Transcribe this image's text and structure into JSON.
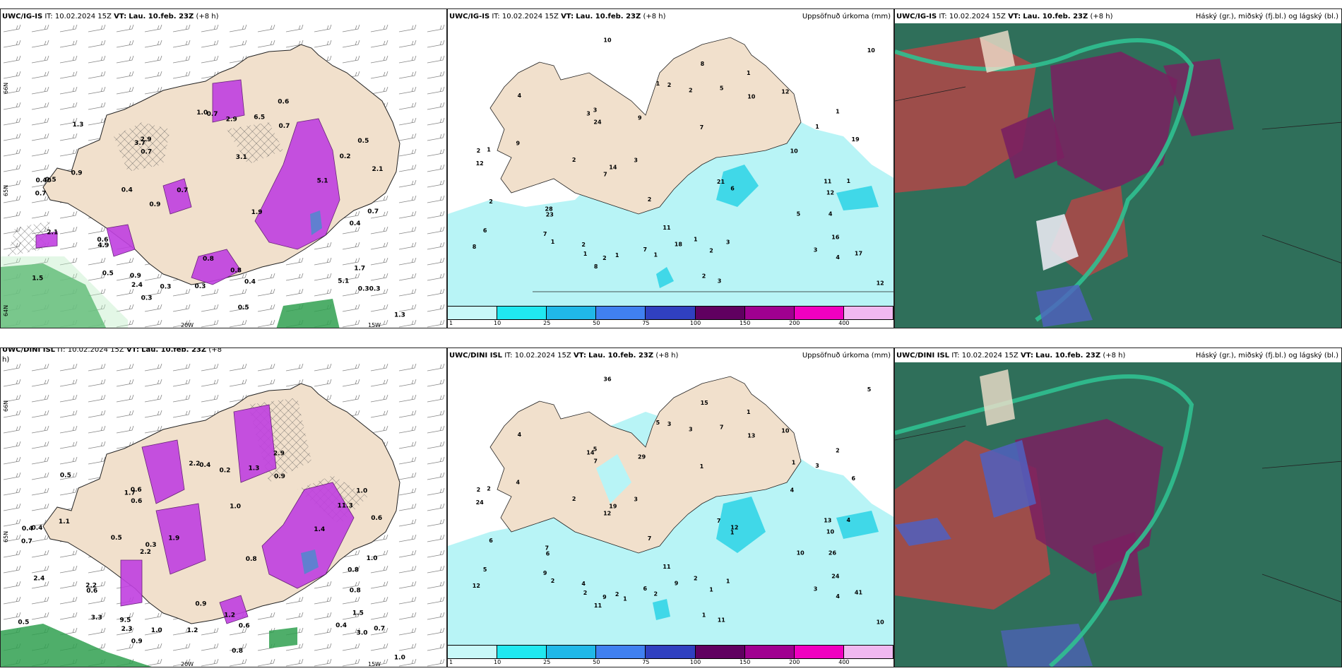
{
  "panels": {
    "p1": {
      "model": "UWC/IG-IS",
      "it_label": "IT:",
      "it": "10.02.2024 15Z",
      "vt_label": "VT:",
      "vt": "Lau. 10.feb. 23Z",
      "lead": "(+8 h)",
      "right": ""
    },
    "p2": {
      "model": "UWC/IG-IS",
      "it_label": "IT:",
      "it": "10.02.2024 15Z",
      "vt_label": "VT:",
      "vt": "Lau. 10.feb. 23Z",
      "lead": "(+8 h)",
      "right": "Uppsöfnuð úrkoma (mm)"
    },
    "p3": {
      "model": "UWC/IG-IS",
      "it_label": "IT:",
      "it": "10.02.2024 15Z",
      "vt_label": "VT:",
      "vt": "Lau. 10.feb. 23Z",
      "lead": "(+8 h)",
      "right": "Háský (gr.), miðský (fj.bl.) og lágský (bl.)"
    },
    "p4": {
      "model": "UWC/DINI ISL",
      "it_label": "IT:",
      "it": "10.02.2024 15Z",
      "vt_label": "VT:",
      "vt": "Lau. 10.feb. 23Z",
      "lead": "(+8",
      "lead2": "h)",
      "right": ""
    },
    "p5": {
      "model": "UWC/DINI ISL",
      "it_label": "IT:",
      "it": "10.02.2024 15Z",
      "vt_label": "VT:",
      "vt": "Lau. 10.feb. 23Z",
      "lead": "(+8 h)",
      "right": "Uppsöfnuð úrkoma (mm)"
    },
    "p6": {
      "model": "UWC/DINI ISL",
      "it_label": "IT:",
      "it": "10.02.2024 15Z",
      "vt_label": "VT:",
      "vt": "Lau. 10.feb. 23Z",
      "lead": "(+8 h)",
      "right": "Háský (gr.), miðský (fj.bl.) og lágský (bl.)"
    }
  },
  "graticule": {
    "lon_20": "20W",
    "lon_15": "15W",
    "lat_66": "66N",
    "lat_65": "65N",
    "lat_64": "64N"
  },
  "colorbar": {
    "labels": [
      "1",
      "10",
      "25",
      "50",
      "75",
      "100",
      "150",
      "200",
      "400"
    ],
    "colors": [
      "#c8f8f8",
      "#20e8f0",
      "#20b8e8",
      "#4080f0",
      "#3040c0",
      "#600060",
      "#a00090",
      "#f000c0",
      "#f0b8f0"
    ]
  },
  "colors": {
    "land": "#f1e0cc",
    "precip_light": "#b8f4f6",
    "precip_mid": "#40d8e8",
    "snow_magenta": "#c040e0",
    "rain_green": "#30a050",
    "cloud_dark": "#2f6f5a",
    "cloud_red": "#b04848",
    "cloud_purple": "#7a2060",
    "cloud_teal": "#30c090"
  },
  "p1_labels": [
    "0.40",
    "0.5",
    "0.5",
    "0.4",
    "0.5",
    "0.6",
    "0.4",
    "0.5",
    "0.3",
    "0.3",
    "0.7",
    "0.8",
    "0.30.3",
    "2.4",
    "2.9",
    "2.9",
    "3.7",
    "2.1",
    "6.5",
    "5.1",
    "1.3",
    "1.0",
    "0.9",
    "0.2",
    "0.7",
    "0.7",
    "3.1",
    "5.1",
    "0.9",
    "1.9",
    "2.1",
    "4.9",
    "0.7",
    "0.6",
    "0.8",
    "1.3",
    "0.4",
    "0.3",
    "1.5",
    "0.9",
    "0.7",
    "0.7",
    "1.7"
  ],
  "p2_labels": [
    "2",
    "1",
    "1",
    "2",
    "1",
    "1",
    "2",
    "2",
    "1",
    "1",
    "2",
    "1",
    "4",
    "1",
    "3",
    "2",
    "3",
    "2",
    "5",
    "3",
    "4",
    "1",
    "2",
    "1",
    "3",
    "1",
    "7",
    "10",
    "9",
    "21",
    "19",
    "23",
    "24",
    "28",
    "11",
    "12",
    "12",
    "8",
    "8",
    "7",
    "12",
    "10",
    "16",
    "17",
    "14",
    "4",
    "9",
    "10",
    "6",
    "12",
    "10",
    "18",
    "2",
    "3",
    "5",
    "2",
    "8",
    "11",
    "7",
    "7",
    "6",
    "3"
  ],
  "p4_labels": [
    "0.4",
    "0.4",
    "1.0",
    "0.5",
    "3.3",
    "2.9",
    "0.6",
    "0.8",
    "1.2",
    "1.0",
    "0.4",
    "1.2",
    "3.0",
    "2.3",
    "0.6",
    "0.2",
    "1.7",
    "2.4",
    "1.3",
    "0.4",
    "0.5",
    "2.2",
    "9.5",
    "11.3",
    "1.9",
    "1.0",
    "1.0",
    "1.4",
    "1.1",
    "0.8",
    "0.6",
    "0.6",
    "0.6",
    "2.2",
    "0.9",
    "1.0",
    "0.8",
    "0.9",
    "0.5",
    "2.2",
    "0.7",
    "0.9",
    "1.5",
    "0.7",
    "0.3",
    "0.8"
  ],
  "p5_labels": [
    "2",
    "2",
    "2",
    "2",
    "2",
    "1",
    "1",
    "1",
    "2",
    "2",
    "3",
    "2",
    "4",
    "2",
    "5",
    "3",
    "14",
    "6",
    "7",
    "3",
    "4",
    "5",
    "4",
    "3",
    "3",
    "4",
    "1",
    "4",
    "4",
    "7",
    "6",
    "6",
    "7",
    "7",
    "11",
    "10",
    "10",
    "11",
    "12",
    "12",
    "24",
    "13",
    "24",
    "41",
    "19",
    "26",
    "29",
    "36",
    "12",
    "10",
    "5",
    "9",
    "9",
    "11",
    "10",
    "7",
    "15",
    "13",
    "6",
    "9",
    "5",
    "1",
    "1",
    "1",
    "1"
  ]
}
